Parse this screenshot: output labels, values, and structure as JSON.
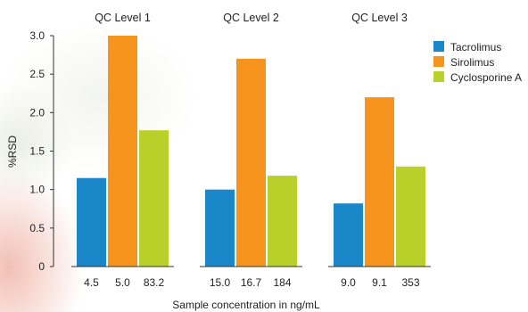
{
  "chart_data": {
    "type": "bar",
    "ylabel": "%RSD",
    "xlabel": "Sample concentration in ng/mL",
    "ylim": [
      0,
      3.0
    ],
    "yticks": [
      "0",
      "0.5",
      "1.0",
      "1.5",
      "2.0",
      "2.5",
      "3.0"
    ],
    "legend_position": "right",
    "groups": [
      {
        "label": "QC Level 1",
        "concentrations": [
          "4.5",
          "5.0",
          "83.2"
        ],
        "values": [
          1.15,
          3.0,
          1.77
        ]
      },
      {
        "label": "QC Level 2",
        "concentrations": [
          "15.0",
          "16.7",
          "184"
        ],
        "values": [
          1.0,
          2.7,
          1.18
        ]
      },
      {
        "label": "QC Level 3",
        "concentrations": [
          "9.0",
          "9.1",
          "353"
        ],
        "values": [
          0.82,
          2.2,
          1.3
        ]
      }
    ],
    "series": [
      {
        "name": "Tacrolimus",
        "color": "#1a87c9"
      },
      {
        "name": "Sirolimus",
        "color": "#f7941d"
      },
      {
        "name": "Cyclosporine A",
        "color": "#b9cf2a"
      }
    ]
  }
}
